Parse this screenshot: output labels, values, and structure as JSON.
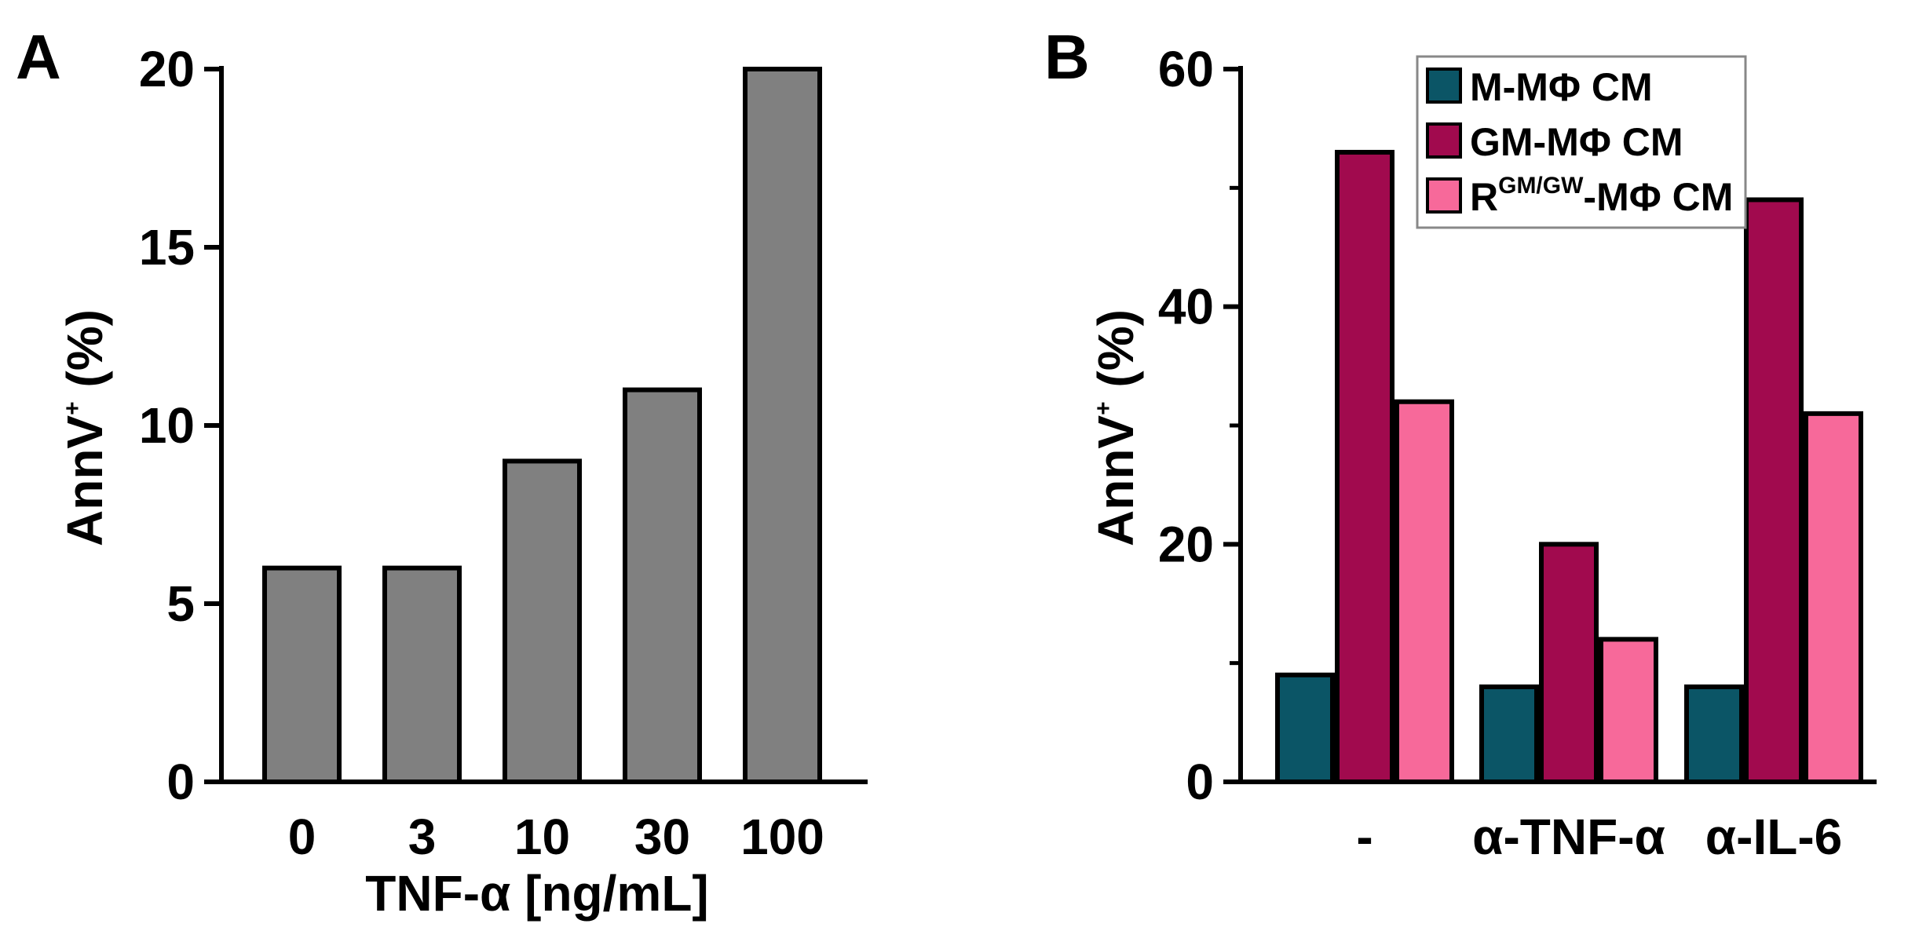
{
  "chart_data": [
    {
      "panel": "A",
      "type": "bar",
      "categories": [
        "0",
        "3",
        "10",
        "30",
        "100"
      ],
      "values": [
        6,
        6,
        9,
        11,
        20
      ],
      "title": "",
      "xlabel": "TNF-α [ng/mL]",
      "ylabel_main": "AnnV",
      "ylabel_sup": "+",
      "ylabel_tail": " (%)",
      "ylim": [
        0,
        20
      ],
      "yticks": [
        0,
        5,
        10,
        15,
        20
      ],
      "bar_color": "#808080",
      "grid": false
    },
    {
      "panel": "B",
      "type": "bar",
      "categories": [
        "-",
        "α-TNF-α",
        "α-IL-6"
      ],
      "series": [
        {
          "name": "M-MΦ CM",
          "color": "#0b5566",
          "values": [
            9,
            8,
            8
          ]
        },
        {
          "name": "GM-MΦ CM",
          "color": "#a10a4e",
          "values": [
            53,
            20,
            49
          ]
        },
        {
          "name_prefix": "R",
          "name_sup": "GM/GW",
          "name_suffix": "-MΦ CM",
          "color": "#f7699a",
          "values": [
            32,
            12,
            31
          ]
        }
      ],
      "title": "",
      "xlabel": "",
      "ylabel_main": "AnnV",
      "ylabel_sup": "+",
      "ylabel_tail": " (%)",
      "ylim": [
        0,
        60
      ],
      "yticks": [
        0,
        20,
        40,
        60
      ],
      "legend_position": "top-right",
      "grid": false
    }
  ]
}
